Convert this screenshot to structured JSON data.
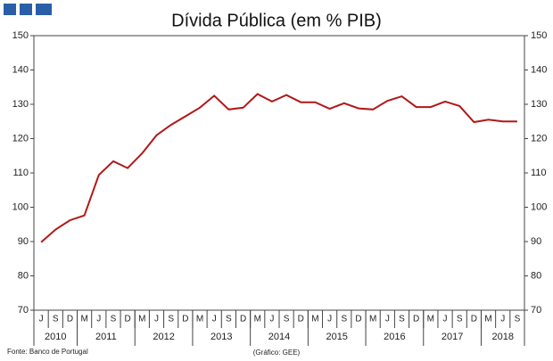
{
  "chart_data": {
    "type": "line",
    "title": "Dívida Pública (em % PIB)",
    "categories": [
      "J",
      "S",
      "D",
      "M",
      "J",
      "S",
      "D",
      "M",
      "J",
      "S",
      "D",
      "M",
      "J",
      "S",
      "D",
      "M",
      "J",
      "S",
      "D",
      "M",
      "J",
      "S",
      "D",
      "M",
      "J",
      "S",
      "D",
      "M",
      "J",
      "S",
      "D",
      "M",
      "J",
      "S"
    ],
    "years": [
      "2010",
      "2011",
      "2012",
      "2013",
      "2014",
      "2015",
      "2016",
      "2017",
      "2018"
    ],
    "series": [
      {
        "color": "#b01818",
        "values": [
          89.8,
          93.5,
          96.2,
          97.6,
          109.4,
          113.4,
          111.4,
          115.7,
          121.0,
          124.0,
          126.5,
          129.0,
          132.5,
          128.5,
          129.0,
          133.0,
          130.8,
          132.7,
          130.6,
          130.6,
          128.7,
          130.3,
          128.8,
          128.5,
          131.0,
          132.3,
          129.2,
          129.2,
          130.8,
          129.5,
          124.8,
          125.5,
          125.0,
          125.0
        ]
      }
    ],
    "ylim": [
      70,
      150
    ],
    "yticks": [
      70,
      80,
      90,
      100,
      110,
      120,
      130,
      140,
      150
    ],
    "y2lim": [
      70,
      150
    ],
    "y2ticks": [
      70,
      80,
      90,
      100,
      110,
      120,
      130,
      140,
      150
    ],
    "source": "Fonte: Banco de Portugal",
    "credit": "(Gráfico: GEE)"
  }
}
